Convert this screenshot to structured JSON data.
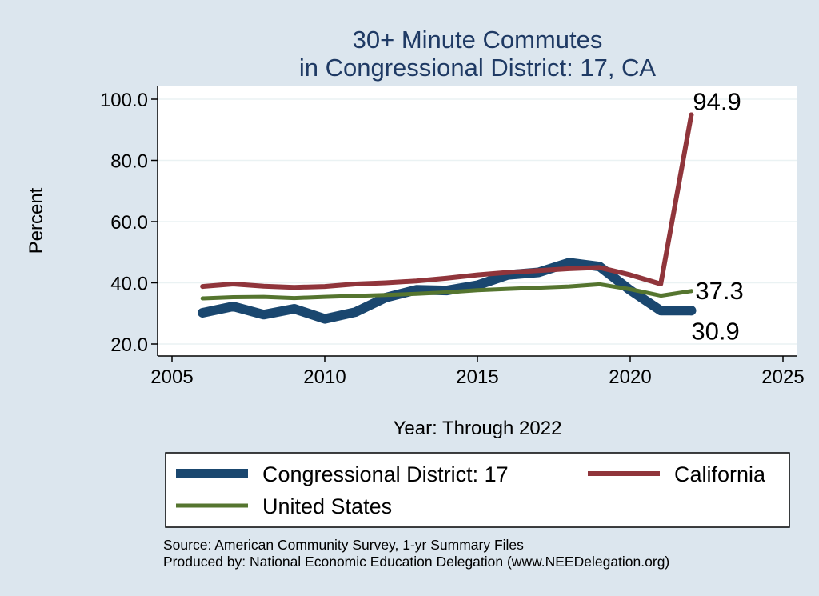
{
  "chart_data": {
    "type": "line",
    "title": [
      "30+ Minute Commutes",
      "in Congressional District:  17, CA"
    ],
    "xlabel": "Year: Through 2022",
    "ylabel": "Percent",
    "xlim": [
      2005,
      2025
    ],
    "ylim": [
      20,
      100
    ],
    "x_ticks": [
      2005,
      2010,
      2015,
      2020,
      2025
    ],
    "y_ticks": [
      20,
      40,
      60,
      80,
      100
    ],
    "y_tick_labels": [
      "20.0",
      "40.0",
      "60.0",
      "80.0",
      "100.0"
    ],
    "grid": true,
    "legend_position": "bottom",
    "series": [
      {
        "name": "Congressional District:  17",
        "color": "#1a476f",
        "x": [
          2006,
          2007,
          2008,
          2009,
          2010,
          2011,
          2012,
          2013,
          2014,
          2015,
          2016,
          2017,
          2018,
          2019,
          2020,
          2021,
          2022
        ],
        "values": [
          30.2,
          32.3,
          29.6,
          31.5,
          28.2,
          30.4,
          35.2,
          37.7,
          37.5,
          39.2,
          42.6,
          43.4,
          46.6,
          45.3,
          37.6,
          30.9,
          30.9
        ],
        "end_label": "30.9"
      },
      {
        "name": "California",
        "color": "#90353b",
        "x": [
          2006,
          2007,
          2008,
          2009,
          2010,
          2011,
          2012,
          2013,
          2014,
          2015,
          2016,
          2017,
          2018,
          2019,
          2020,
          2021,
          2022
        ],
        "values": [
          38.8,
          39.6,
          38.9,
          38.5,
          38.8,
          39.6,
          40.0,
          40.6,
          41.5,
          42.6,
          43.4,
          44.0,
          44.6,
          45.0,
          42.6,
          39.6,
          94.9
        ],
        "end_label": "94.9"
      },
      {
        "name": "United States",
        "color": "#55752f",
        "x": [
          2006,
          2007,
          2008,
          2009,
          2010,
          2011,
          2012,
          2013,
          2014,
          2015,
          2016,
          2017,
          2018,
          2019,
          2020,
          2021,
          2022
        ],
        "values": [
          34.9,
          35.3,
          35.4,
          35.0,
          35.4,
          35.7,
          36.0,
          36.4,
          36.9,
          37.6,
          38.0,
          38.4,
          38.8,
          39.5,
          37.9,
          35.8,
          37.3
        ],
        "end_label": "37.3"
      }
    ],
    "legend": [
      "Congressional District:  17",
      "California",
      "United States"
    ]
  },
  "source_lines": [
    "Source: American Community Survey, 1-yr Summary Files",
    "Produced by: National Economic Education Delegation (www.NEEDelegation.org)"
  ]
}
